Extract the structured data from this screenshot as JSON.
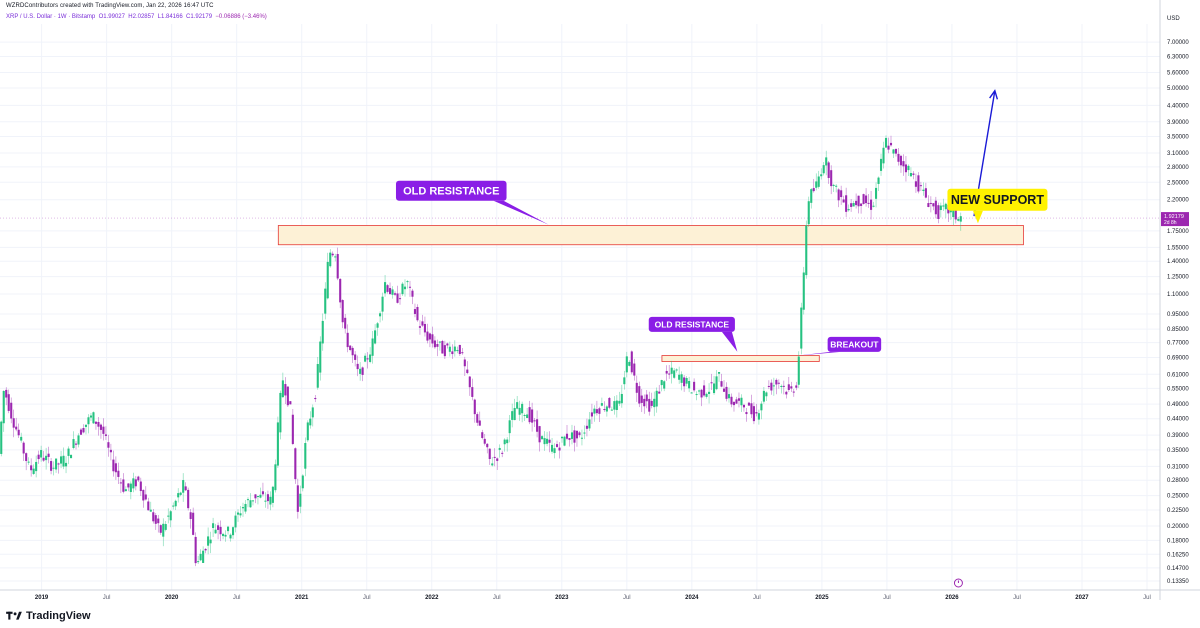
{
  "header": {
    "credit": "WZRDContributors created with TradingView.com, Jan 22, 2026 16:47 UTC",
    "symbol": "XRP / U.S. Dollar · 1W · Bitstamp",
    "open": "O1.99027",
    "high": "H2.02857",
    "low": "L1.84166",
    "close": "C1.92179",
    "change": "−0.06886 (−3.46%)"
  },
  "footer": {
    "brand": "TradingView"
  },
  "colors": {
    "up": "#26c281",
    "down": "#9c27b0",
    "zone_fill": "#fdf1d6",
    "zone_stroke": "#e53935",
    "callout": "#8a1ee6",
    "support_callout": "#fff200",
    "arrow": "#1a1ad6"
  },
  "icons": {
    "logo": "tradingview-logo-icon",
    "clock": "clock-icon"
  },
  "chart_data": {
    "type": "candlestick",
    "currency_label": "USD",
    "scale": "log",
    "ylim": [
      0.125,
      8.0
    ],
    "y_ticks": [
      "7.00000",
      "6.30000",
      "5.60000",
      "5.00000",
      "4.40000",
      "3.90000",
      "3.50000",
      "3.10000",
      "2.80000",
      "2.50000",
      "2.20000",
      "1.75000",
      "1.55000",
      "1.40000",
      "1.25000",
      "1.10000",
      "0.95000",
      "0.85000",
      "0.77000",
      "0.69000",
      "0.61000",
      "0.55000",
      "0.49000",
      "0.44000",
      "0.39000",
      "0.35000",
      "0.31000",
      "0.28000",
      "0.25000",
      "0.22500",
      "0.20000",
      "0.18000",
      "0.16250",
      "0.14700",
      "0.13350"
    ],
    "x_ticks": [
      {
        "label": "2019",
        "t": 2019.0,
        "bold": true
      },
      {
        "label": "Jul",
        "t": 2019.5
      },
      {
        "label": "2020",
        "t": 2020.0,
        "bold": true
      },
      {
        "label": "Jul",
        "t": 2020.5
      },
      {
        "label": "2021",
        "t": 2021.0,
        "bold": true
      },
      {
        "label": "Jul",
        "t": 2021.5
      },
      {
        "label": "2022",
        "t": 2022.0,
        "bold": true
      },
      {
        "label": "Jul",
        "t": 2022.5
      },
      {
        "label": "2023",
        "t": 2023.0,
        "bold": true
      },
      {
        "label": "Jul",
        "t": 2023.5
      },
      {
        "label": "2024",
        "t": 2024.0,
        "bold": true
      },
      {
        "label": "Jul",
        "t": 2024.5
      },
      {
        "label": "2025",
        "t": 2025.0,
        "bold": true
      },
      {
        "label": "Jul",
        "t": 2025.5
      },
      {
        "label": "2026",
        "t": 2026.0,
        "bold": true
      },
      {
        "label": "Jul",
        "t": 2026.5
      },
      {
        "label": "2027",
        "t": 2027.0,
        "bold": true
      },
      {
        "label": "Jul",
        "t": 2027.5
      }
    ],
    "x_range": [
      2018.68,
      2027.6
    ],
    "price_path": [
      [
        2018.68,
        0.34
      ],
      [
        2018.72,
        0.55
      ],
      [
        2018.78,
        0.45
      ],
      [
        2018.85,
        0.37
      ],
      [
        2018.92,
        0.3
      ],
      [
        2019.0,
        0.34
      ],
      [
        2019.1,
        0.31
      ],
      [
        2019.2,
        0.33
      ],
      [
        2019.3,
        0.4
      ],
      [
        2019.4,
        0.45
      ],
      [
        2019.48,
        0.4
      ],
      [
        2019.55,
        0.32
      ],
      [
        2019.65,
        0.26
      ],
      [
        2019.75,
        0.28
      ],
      [
        2019.85,
        0.22
      ],
      [
        2019.92,
        0.19
      ],
      [
        2020.0,
        0.22
      ],
      [
        2020.1,
        0.27
      ],
      [
        2020.16,
        0.21
      ],
      [
        2020.2,
        0.15
      ],
      [
        2020.26,
        0.17
      ],
      [
        2020.33,
        0.2
      ],
      [
        2020.45,
        0.19
      ],
      [
        2020.55,
        0.23
      ],
      [
        2020.65,
        0.25
      ],
      [
        2020.78,
        0.24
      ],
      [
        2020.86,
        0.6
      ],
      [
        2020.92,
        0.48
      ],
      [
        2020.98,
        0.22
      ],
      [
        2021.05,
        0.4
      ],
      [
        2021.12,
        0.55
      ],
      [
        2021.22,
        1.5
      ],
      [
        2021.27,
        1.5
      ],
      [
        2021.33,
        0.85
      ],
      [
        2021.45,
        0.6
      ],
      [
        2021.55,
        0.75
      ],
      [
        2021.65,
        1.2
      ],
      [
        2021.73,
        1.05
      ],
      [
        2021.82,
        1.2
      ],
      [
        2021.9,
        0.9
      ],
      [
        2022.0,
        0.78
      ],
      [
        2022.1,
        0.73
      ],
      [
        2022.22,
        0.75
      ],
      [
        2022.3,
        0.55
      ],
      [
        2022.38,
        0.4
      ],
      [
        2022.46,
        0.32
      ],
      [
        2022.55,
        0.35
      ],
      [
        2022.65,
        0.48
      ],
      [
        2022.75,
        0.46
      ],
      [
        2022.85,
        0.38
      ],
      [
        2022.95,
        0.35
      ],
      [
        2023.05,
        0.39
      ],
      [
        2023.15,
        0.38
      ],
      [
        2023.25,
        0.47
      ],
      [
        2023.35,
        0.49
      ],
      [
        2023.45,
        0.48
      ],
      [
        2023.52,
        0.72
      ],
      [
        2023.6,
        0.52
      ],
      [
        2023.7,
        0.48
      ],
      [
        2023.8,
        0.6
      ],
      [
        2023.88,
        0.62
      ],
      [
        2023.95,
        0.58
      ],
      [
        2024.05,
        0.53
      ],
      [
        2024.15,
        0.55
      ],
      [
        2024.22,
        0.6
      ],
      [
        2024.3,
        0.5
      ],
      [
        2024.4,
        0.49
      ],
      [
        2024.5,
        0.45
      ],
      [
        2024.58,
        0.55
      ],
      [
        2024.68,
        0.58
      ],
      [
        2024.76,
        0.53
      ],
      [
        2024.82,
        0.58
      ],
      [
        2024.86,
        1.1
      ],
      [
        2024.9,
        2.2
      ],
      [
        2024.96,
        2.4
      ],
      [
        2025.03,
        3.0
      ],
      [
        2025.1,
        2.4
      ],
      [
        2025.2,
        2.1
      ],
      [
        2025.3,
        2.2
      ],
      [
        2025.4,
        2.1
      ],
      [
        2025.5,
        3.4
      ],
      [
        2025.58,
        3.0
      ],
      [
        2025.66,
        2.8
      ],
      [
        2025.74,
        2.5
      ],
      [
        2025.82,
        2.2
      ],
      [
        2025.9,
        2.0
      ],
      [
        2025.97,
        2.05
      ],
      [
        2026.06,
        1.92
      ]
    ],
    "last_price_label": "1.92179",
    "last_price_countdown": "2d 8h",
    "last_price": 1.92179,
    "zones": [
      {
        "name": "old-resistance-zone-major",
        "t0": 2020.82,
        "t1": 2026.55,
        "p_low": 1.58,
        "p_high": 1.82
      },
      {
        "name": "old-resistance-zone-minor",
        "t0": 2023.77,
        "t1": 2024.98,
        "p_low": 0.67,
        "p_high": 0.7
      }
    ],
    "annotations": [
      {
        "text": "OLD RESISTANCE",
        "style": "callout-large",
        "t": 2022.15,
        "p": 2.35,
        "pointer_t": 2022.9,
        "pointer_p": 1.83
      },
      {
        "text": "OLD RESISTANCE",
        "style": "callout-small",
        "t": 2024.0,
        "p": 0.88,
        "pointer_t": 2024.35,
        "pointer_p": 0.72
      },
      {
        "text": "BREAKOUT",
        "style": "callout-small",
        "t": 2025.25,
        "p": 0.76,
        "pointer_t": 2024.82,
        "pointer_p": 0.7
      },
      {
        "text": "NEW SUPPORT",
        "style": "callout-yellow",
        "t": 2026.35,
        "p": 2.2,
        "pointer_t": 2026.2,
        "pointer_p": 1.85
      }
    ],
    "projection_arrow": {
      "t0": 2026.17,
      "p0": 1.95,
      "t1": 2026.33,
      "p1": 4.9
    }
  }
}
